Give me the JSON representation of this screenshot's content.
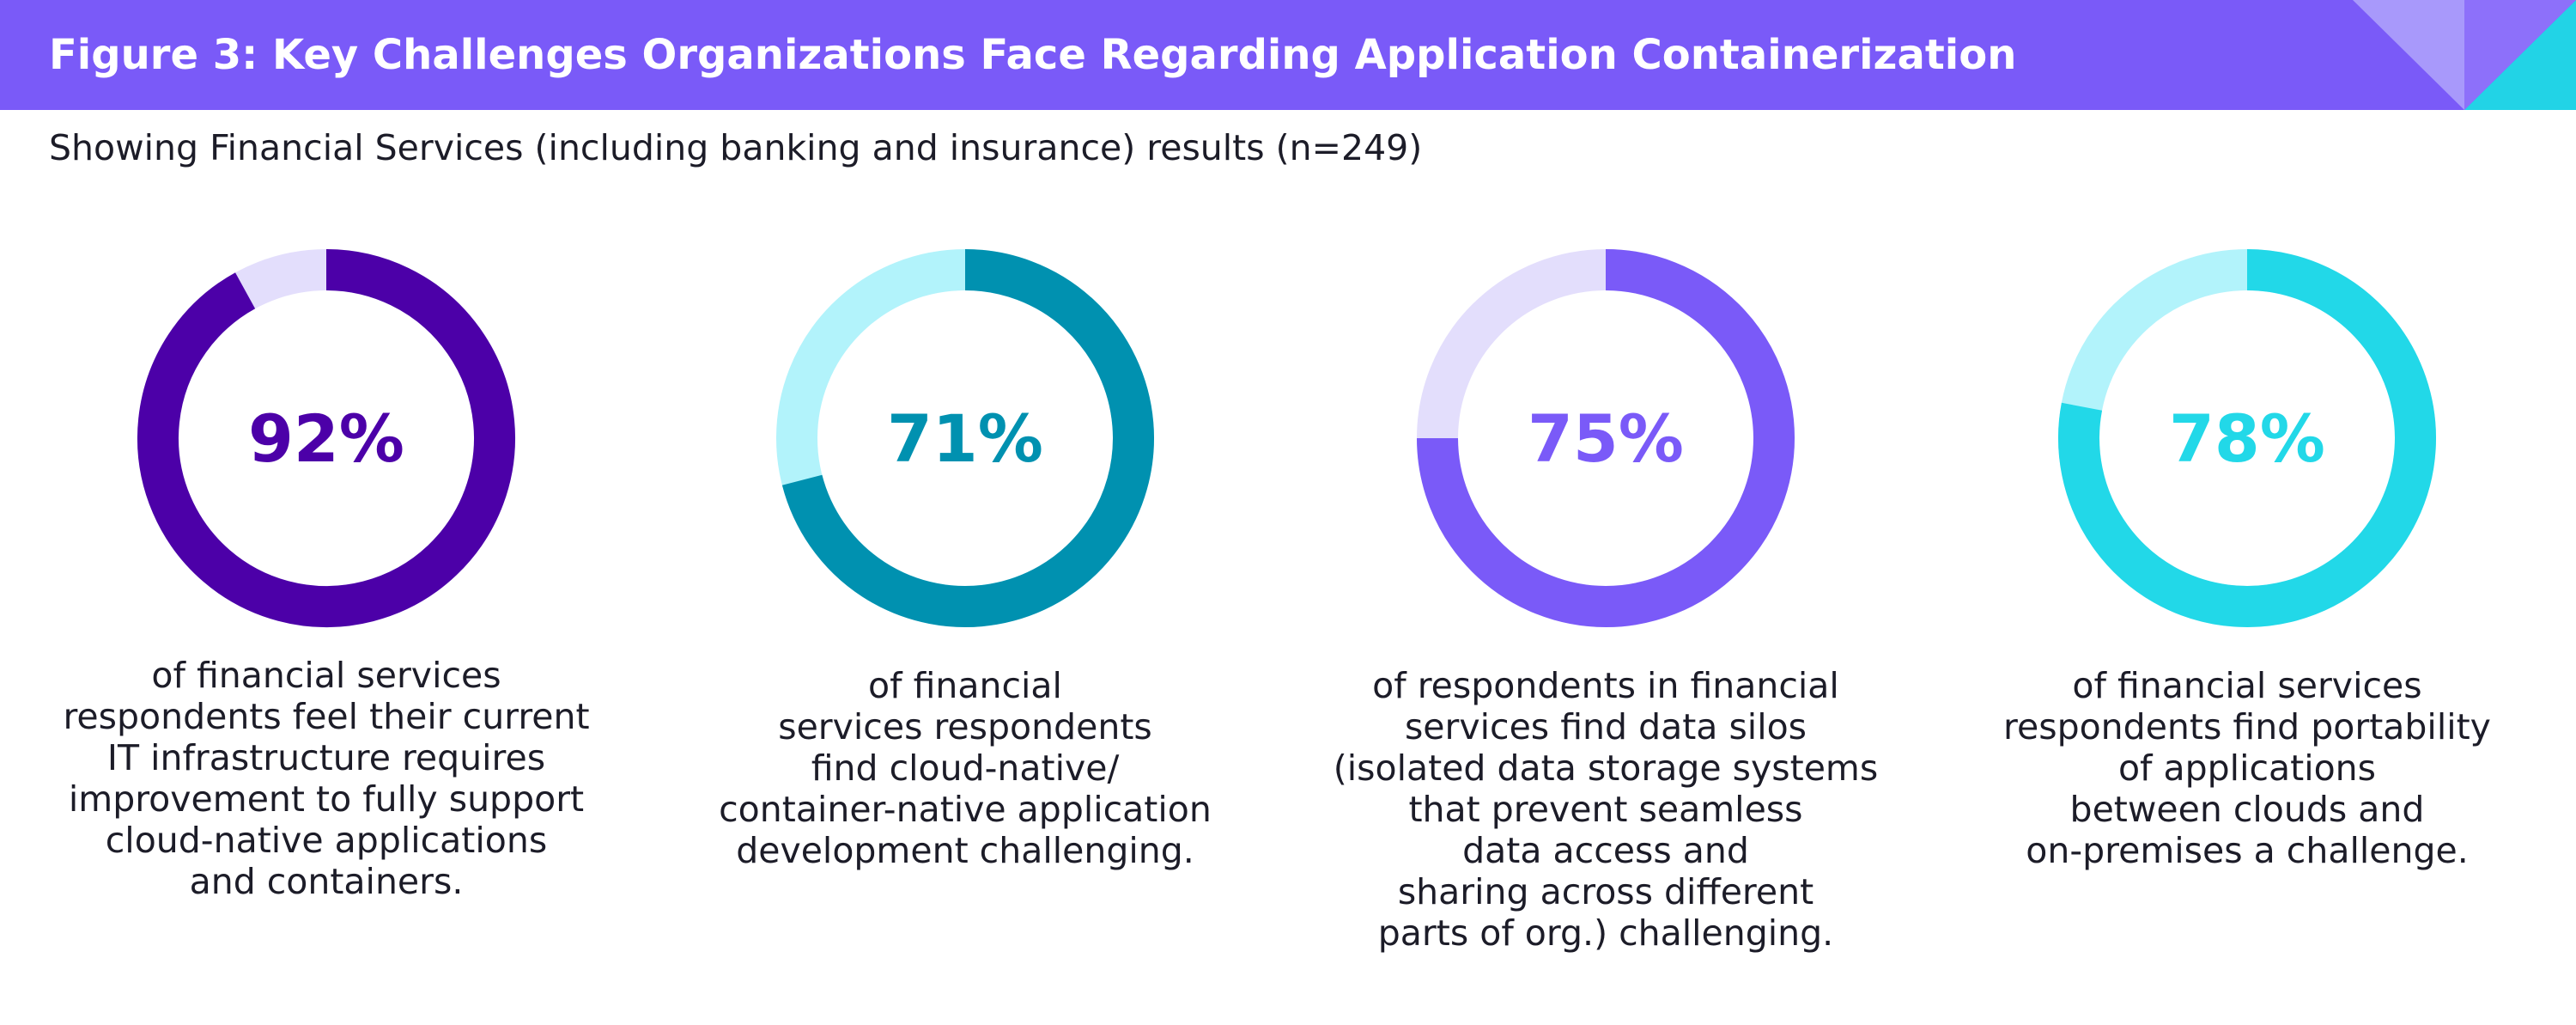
{
  "header": {
    "title": "Figure 3: Key Challenges Organizations Face Regarding Application Containerization"
  },
  "subtitle": "Showing Financial Services (including banking and insurance) results (n=249)",
  "colors": {
    "header_bg": "#7a5af8",
    "corner_light": "#a899fb",
    "corner_accent": "#22d3e6"
  },
  "chart_data": [
    {
      "type": "pie",
      "label": "92%",
      "values": [
        92,
        8
      ],
      "color": "#4c00a8",
      "track": "#e3defc",
      "caption": [
        "of financial services",
        "respondents feel their current",
        "IT infrastructure requires",
        "improvement to fully support",
        "cloud-native applications",
        "and containers."
      ]
    },
    {
      "type": "pie",
      "label": "71%",
      "values": [
        71,
        29
      ],
      "color": "#0091b0",
      "track": "#b2f3fb",
      "caption": [
        "of financial",
        "services respondents",
        "find cloud-native/",
        "container-native application",
        "development challenging."
      ]
    },
    {
      "type": "pie",
      "label": "75%",
      "values": [
        75,
        25
      ],
      "color": "#7a5af8",
      "track": "#e3defc",
      "caption": [
        "of respondents in financial",
        "services find data silos",
        "(isolated data storage systems",
        "that prevent seamless",
        "data access and",
        "sharing across different",
        "parts of org.) challenging."
      ]
    },
    {
      "type": "pie",
      "label": "78%",
      "values": [
        78,
        22
      ],
      "color": "#22d8e8",
      "track": "#b2f3fb",
      "caption": [
        "of financial services",
        "respondents find portability",
        "of applications",
        "between clouds and",
        "on-premises a challenge."
      ]
    }
  ]
}
